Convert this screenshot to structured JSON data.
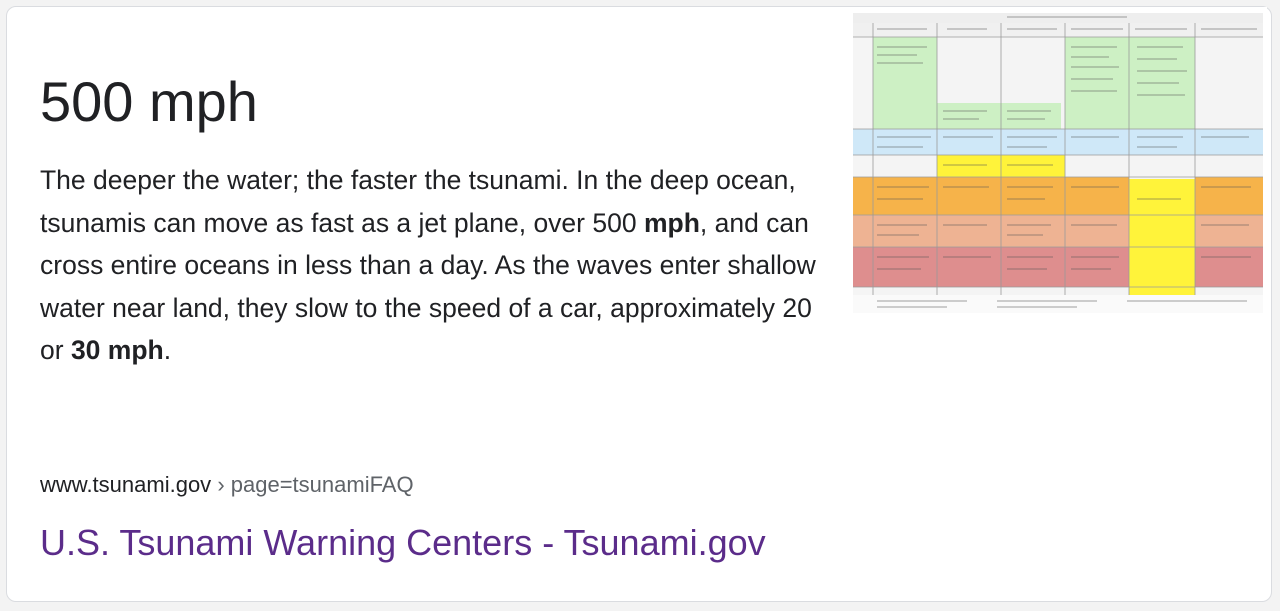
{
  "answer": {
    "value": "500 mph"
  },
  "snippet": {
    "part1": "The deeper the water; the faster the tsunami. In the deep ocean, tsunamis can move as fast as a jet plane, over 500 ",
    "bold1": "mph",
    "part2": ", and can cross entire oceans in less than a day. As the waves enter shallow water near land, they slow to the speed of a car, approximately 20 or ",
    "bold2": "30 mph",
    "part3": "."
  },
  "source": {
    "domain": "www.tsunami.gov",
    "separator": "›",
    "path": "page=tsunamiFAQ",
    "title": "U.S. Tsunami Warning Centers - Tsunami.gov"
  },
  "thumbnail": {
    "icon": "tsunami-message-table-image",
    "colors": {
      "green": "#cdf0c4",
      "blue": "#cfe8f8",
      "yellow": "#fff33a",
      "orange": "#f6b34a",
      "salmon": "#eeb393",
      "red": "#de8e8e"
    }
  }
}
